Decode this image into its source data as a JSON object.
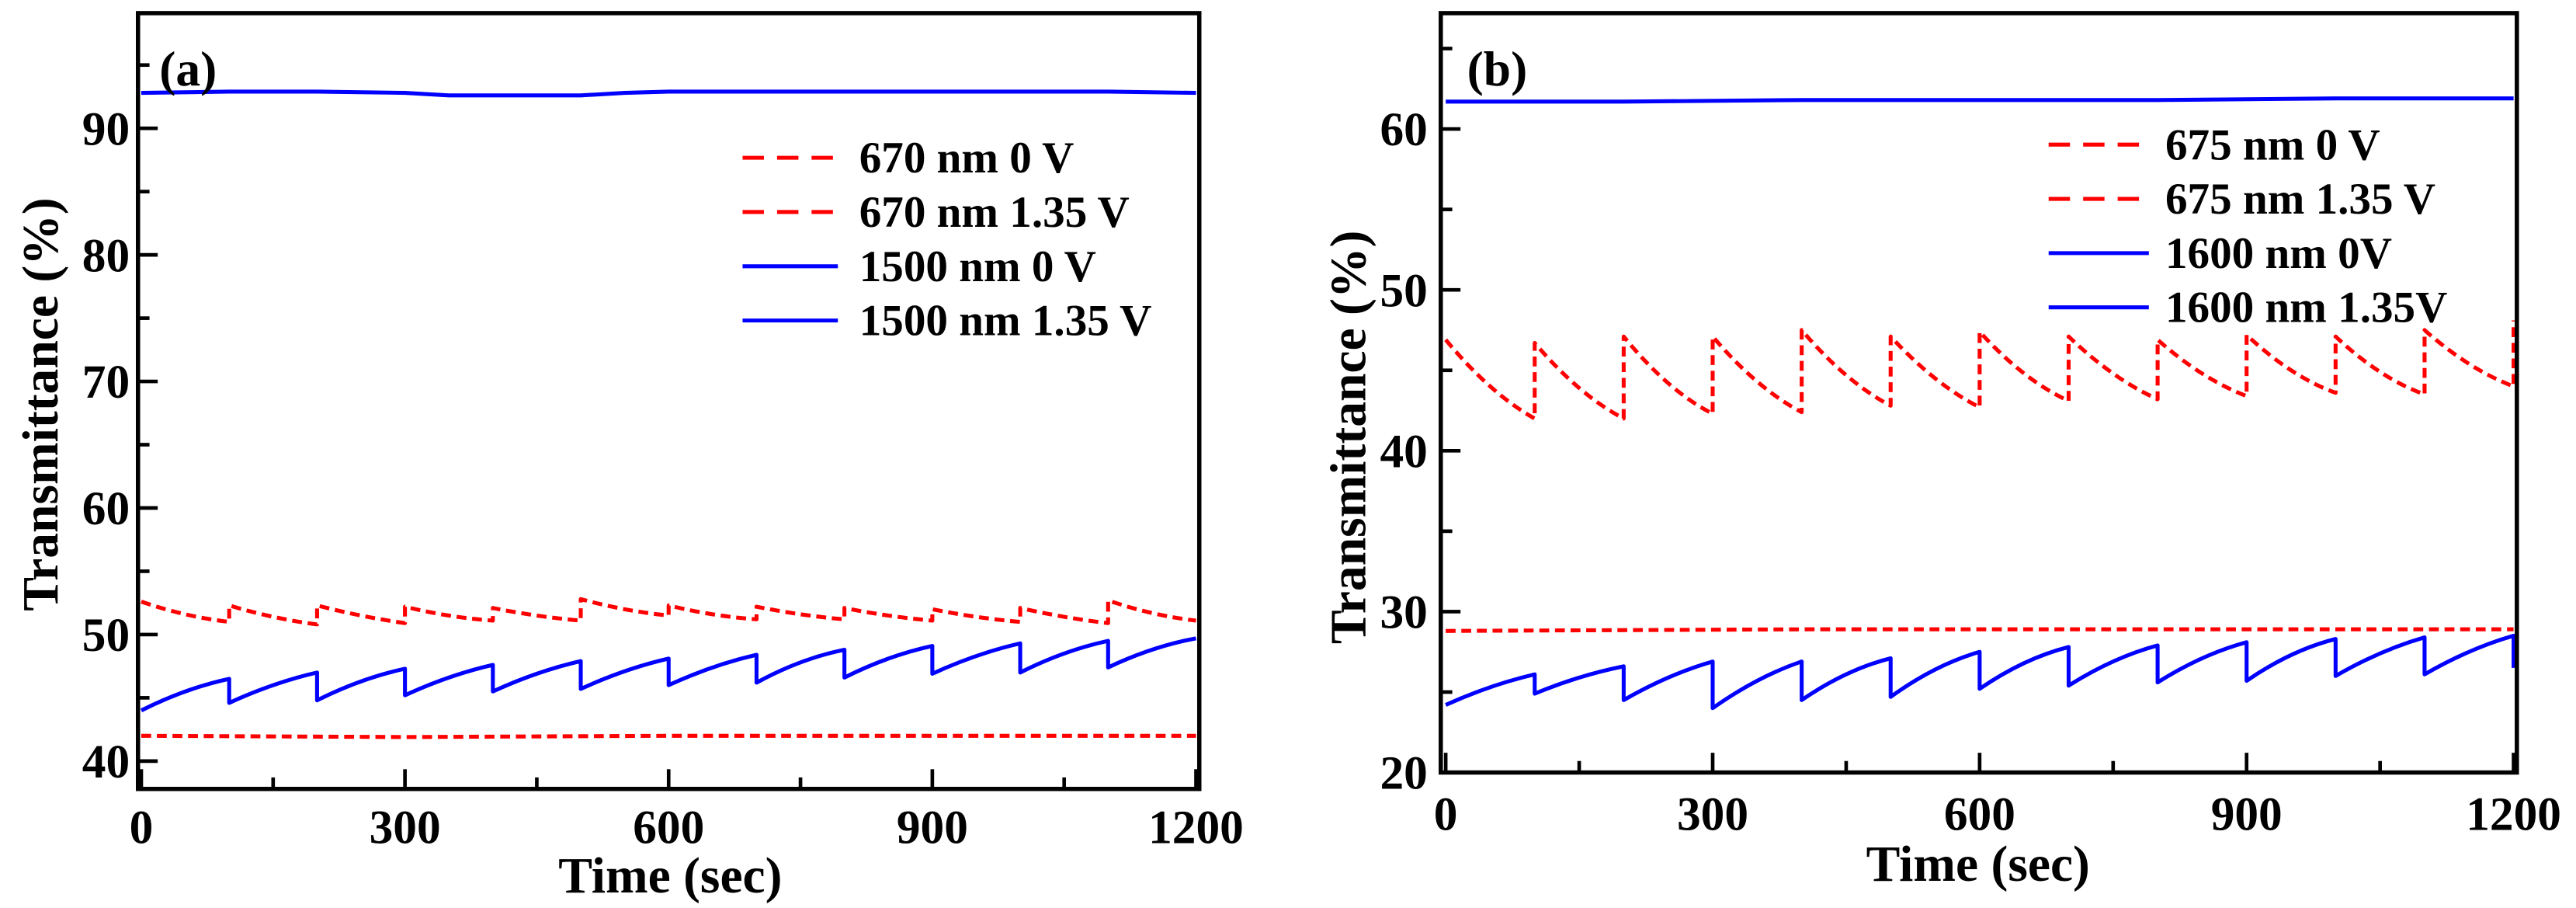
{
  "chart_data": [
    {
      "type": "line",
      "panel_label": "(a)",
      "xlabel": "Time (sec)",
      "ylabel": "Transmittance (%)",
      "xlim": [
        0,
        1200
      ],
      "ylim": [
        37.8,
        99.1
      ],
      "xticks": [
        0,
        300,
        600,
        900,
        1200
      ],
      "xtick_labels": [
        "0",
        "300",
        "600",
        "900",
        "1200"
      ],
      "xticks_minor": [
        150,
        450,
        750,
        1050
      ],
      "yticks": [
        40,
        50,
        60,
        70,
        80,
        90
      ],
      "ytick_labels": [
        "40",
        "50",
        "60",
        "70",
        "80",
        "90"
      ],
      "yticks_minor": [
        45,
        55,
        65,
        75,
        85,
        95
      ],
      "grid": false,
      "legend_position": "top-right",
      "series": [
        {
          "name": "670 nm 0 V",
          "color": "#ff0000",
          "dashed": true,
          "x": [
            0,
            300,
            600,
            900,
            1200
          ],
          "y": [
            42.0,
            41.9,
            42.0,
            42.0,
            42.0
          ]
        },
        {
          "name": "670 nm 1.35 V",
          "color": "#ff0000",
          "dashed": true,
          "x": [
            0,
            50,
            100,
            100,
            150,
            200,
            200,
            250,
            300,
            300,
            350,
            400,
            400,
            450,
            500,
            500,
            550,
            600,
            600,
            650,
            700,
            700,
            750,
            800,
            800,
            850,
            900,
            900,
            950,
            1000,
            1000,
            1050,
            1100,
            1100,
            1150,
            1200
          ],
          "y": [
            52.6,
            51.6,
            51.0,
            52.3,
            51.4,
            50.8,
            52.3,
            51.5,
            50.9,
            52.2,
            51.5,
            51.1,
            52.1,
            51.5,
            51.1,
            52.8,
            52.0,
            51.5,
            52.3,
            51.6,
            51.2,
            52.2,
            51.6,
            51.2,
            52.1,
            51.5,
            51.1,
            52.0,
            51.4,
            51.0,
            52.1,
            51.4,
            50.9,
            52.7,
            51.7,
            51.1
          ]
        },
        {
          "name": "1500 nm 0 V",
          "color": "#0000ff",
          "dashed": false,
          "x": [
            0,
            100,
            200,
            300,
            350,
            400,
            450,
            500,
            550,
            600,
            700,
            800,
            900,
            1000,
            1100,
            1200
          ],
          "y": [
            92.8,
            92.9,
            92.9,
            92.8,
            92.6,
            92.6,
            92.6,
            92.6,
            92.8,
            92.9,
            92.9,
            92.9,
            92.9,
            92.9,
            92.9,
            92.8
          ]
        },
        {
          "name": "1500 nm 1.35 V",
          "color": "#0000ff",
          "dashed": false,
          "x": [
            0,
            50,
            100,
            100,
            150,
            200,
            200,
            250,
            300,
            300,
            350,
            400,
            400,
            450,
            500,
            500,
            550,
            600,
            600,
            650,
            700,
            700,
            750,
            800,
            800,
            850,
            900,
            900,
            950,
            1000,
            1000,
            1050,
            1100,
            1100,
            1150,
            1200
          ],
          "y": [
            44.0,
            45.5,
            46.5,
            44.6,
            46.0,
            47.0,
            44.8,
            46.3,
            47.3,
            45.2,
            46.6,
            47.6,
            45.5,
            46.9,
            47.9,
            45.7,
            47.1,
            48.1,
            46.0,
            47.4,
            48.4,
            46.2,
            47.8,
            48.8,
            46.6,
            48.1,
            49.1,
            46.9,
            48.3,
            49.3,
            47.0,
            48.5,
            49.5,
            47.4,
            48.8,
            49.7
          ]
        }
      ]
    },
    {
      "type": "line",
      "panel_label": "(b)",
      "xlabel": "Time (sec)",
      "ylabel": "Transmittance (%)",
      "xlim": [
        0,
        1200
      ],
      "ylim": [
        20,
        67.2
      ],
      "xticks": [
        0,
        300,
        600,
        900,
        1200
      ],
      "xtick_labels": [
        "0",
        "300",
        "600",
        "900",
        "1200"
      ],
      "xticks_minor": [
        150,
        450,
        750,
        1050
      ],
      "yticks": [
        20,
        30,
        40,
        50,
        60
      ],
      "ytick_labels": [
        "20",
        "30",
        "40",
        "50",
        "60"
      ],
      "yticks_minor": [
        25,
        35,
        45,
        55,
        65
      ],
      "grid": false,
      "legend_position": "top-right",
      "series": [
        {
          "name": "675 nm 0 V",
          "color": "#ff0000",
          "dashed": true,
          "x": [
            0,
            400,
            800,
            1200
          ],
          "y": [
            28.8,
            28.9,
            28.9,
            28.9
          ]
        },
        {
          "name": "675 nm 1.35 V",
          "color": "#ff0000",
          "dashed": true,
          "x": [
            0,
            50,
            100,
            100,
            150,
            200,
            200,
            250,
            300,
            300,
            350,
            400,
            400,
            450,
            500,
            500,
            550,
            600,
            600,
            650,
            700,
            700,
            750,
            800,
            800,
            850,
            900,
            900,
            950,
            1000,
            1000,
            1050,
            1100,
            1100,
            1150,
            1200,
            1200
          ],
          "y": [
            46.9,
            44.0,
            42.0,
            46.7,
            43.9,
            42.0,
            47.1,
            44.2,
            42.3,
            47.1,
            44.3,
            42.4,
            47.5,
            44.7,
            42.8,
            47.1,
            44.5,
            42.7,
            47.4,
            44.8,
            43.1,
            47.1,
            44.8,
            43.2,
            46.9,
            44.8,
            43.4,
            47.2,
            45.0,
            43.6,
            47.1,
            44.9,
            43.5,
            47.5,
            45.4,
            44.0,
            48.1
          ]
        },
        {
          "name": "1600 nm 0V",
          "color": "#0000ff",
          "dashed": false,
          "x": [
            0,
            200,
            400,
            600,
            800,
            1000,
            1200
          ],
          "y": [
            61.7,
            61.7,
            61.8,
            61.8,
            61.8,
            61.9,
            61.9
          ]
        },
        {
          "name": "1600 nm 1.35V",
          "color": "#0000ff",
          "dashed": false,
          "x": [
            0,
            50,
            100,
            100,
            150,
            200,
            200,
            250,
            300,
            300,
            350,
            400,
            400,
            450,
            500,
            500,
            550,
            600,
            600,
            650,
            700,
            700,
            750,
            800,
            800,
            850,
            900,
            900,
            950,
            1000,
            1000,
            1050,
            1100,
            1100,
            1150,
            1200,
            1200
          ],
          "y": [
            24.2,
            25.3,
            26.1,
            24.9,
            25.9,
            26.6,
            24.5,
            25.9,
            26.9,
            24.0,
            25.7,
            26.9,
            24.5,
            26.1,
            27.1,
            24.7,
            26.4,
            27.5,
            25.2,
            26.8,
            27.8,
            25.4,
            26.9,
            27.9,
            25.6,
            27.1,
            28.1,
            25.7,
            27.3,
            28.3,
            26.0,
            27.4,
            28.4,
            26.1,
            27.5,
            28.5,
            26.5
          ]
        }
      ]
    }
  ]
}
